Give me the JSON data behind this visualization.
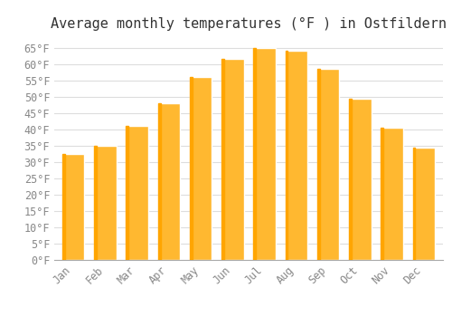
{
  "title": "Average monthly temperatures (°F ) in Ostfildern",
  "months": [
    "Jan",
    "Feb",
    "Mar",
    "Apr",
    "May",
    "Jun",
    "Jul",
    "Aug",
    "Sep",
    "Oct",
    "Nov",
    "Dec"
  ],
  "values": [
    32.5,
    35.0,
    41.0,
    48.0,
    56.0,
    61.5,
    65.0,
    64.0,
    58.5,
    49.5,
    40.5,
    34.5
  ],
  "bar_color_main": "#FFB830",
  "bar_color_left": "#FFA500",
  "background_color": "#FFFFFF",
  "plot_bg_color": "#FFFFFF",
  "ylim": [
    0,
    68
  ],
  "yticks": [
    0,
    5,
    10,
    15,
    20,
    25,
    30,
    35,
    40,
    45,
    50,
    55,
    60,
    65
  ],
  "title_fontsize": 11,
  "tick_fontsize": 8.5,
  "grid_color": "#DDDDDD",
  "tick_color": "#888888",
  "title_color": "#333333"
}
